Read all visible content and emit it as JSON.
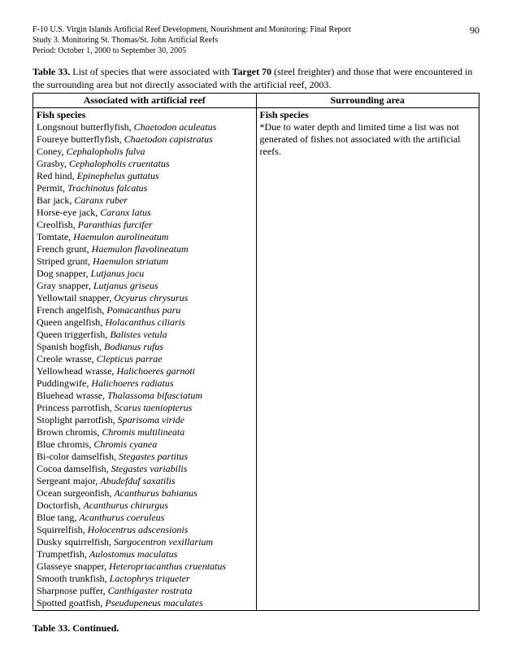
{
  "header": {
    "line1": "F-10 U.S. Virgin Islands Artificial Reef Development, Nourishment and Monitoring: Final Report",
    "line2": "Study 3.  Monitoring St. Thomas/St. John Artificial Reefs",
    "line3": "Period:  October 1, 2000 to September 30, 2005",
    "page_number": "90"
  },
  "caption": {
    "table_label": "Table 33.",
    "before_bold": "  List of species that were associated with ",
    "bold_target": "Target 70",
    "after_bold": " (steel freighter) and those that were encountered in the surrounding area but not directly associated with the artificial reef, 2003."
  },
  "table": {
    "headers": {
      "left": "Associated with artificial reef",
      "right": "Surrounding area"
    },
    "left": {
      "section_title": "Fish species",
      "species": [
        {
          "common": "Longsnout butterflyfish, ",
          "sci": "Chaetodon aculeatus"
        },
        {
          "common": "Foureye butterflyfish, ",
          "sci": "Chaetodon capistratus"
        },
        {
          "common": "Coney, ",
          "sci": "Cephalopholis fulva"
        },
        {
          "common": "Grasby, ",
          "sci": "Cephalopholis cruentatus"
        },
        {
          "common": "Red hind, ",
          "sci": "Epinephelus guttatus"
        },
        {
          "common": "Permit, ",
          "sci": "Trachinotus falcatus"
        },
        {
          "common": "Bar jack, ",
          "sci": "Caranx ruber"
        },
        {
          "common": "Horse-eye jack, ",
          "sci": "Caranx latus"
        },
        {
          "common": "Creolfish, ",
          "sci": "Paranthias furcifer"
        },
        {
          "common": "Tomtate, ",
          "sci": "Haemulon aurolineatum"
        },
        {
          "common": "French grunt, ",
          "sci": "Haemulon flavolineatum"
        },
        {
          "common": "Striped grunt, ",
          "sci": "Haemulon striatum"
        },
        {
          "common": "Dog snapper, ",
          "sci": "Lutjanus jocu"
        },
        {
          "common": "Gray snapper, ",
          "sci": "Lutjanus griseus"
        },
        {
          "common": "Yellowtail snapper, ",
          "sci": "Ocyurus chrysurus"
        },
        {
          "common": "French angelfish, ",
          "sci": "Pomacanthus paru"
        },
        {
          "common": "Queen angelfish, ",
          "sci": "Holacanthus ciliaris"
        },
        {
          "common": "Queen triggerfish, ",
          "sci": "Balistes vetula"
        },
        {
          "common": "Spanish hogfish, ",
          "sci": "Bodianus rufus"
        },
        {
          "common": "Creole wrasse, ",
          "sci": "Clepticus parrae"
        },
        {
          "common": "Yellowhead wrasse, ",
          "sci": "Halichoeres garnoti"
        },
        {
          "common": "Puddingwife, ",
          "sci": "Halichoeres radiatus"
        },
        {
          "common": "Bluehead wrasse, ",
          "sci": "Thalassoma bifasciatum"
        },
        {
          "common": "Princess parrotfish, ",
          "sci": "Scarus taeniopterus"
        },
        {
          "common": "Stoplight parrotfish, ",
          "sci": "Sparisoma viride"
        },
        {
          "common": "Brown chromis, ",
          "sci": "Chromis multilineata"
        },
        {
          "common": "Blue chromis, ",
          "sci": "Chromis cyanea"
        },
        {
          "common": "Bi-color damselfish, ",
          "sci": "Stegastes partitus"
        },
        {
          "common": "Cocoa damselfish, ",
          "sci": "Stegastes variabilis"
        },
        {
          "common": "Sergeant major, ",
          "sci": "Abudefduf saxatilis"
        },
        {
          "common": "Ocean surgeonfish, ",
          "sci": "Acanthurus bahianus"
        },
        {
          "common": "Doctorfish, ",
          "sci": "Acanthurus chirurgus"
        },
        {
          "common": "Blue tang, ",
          "sci": "Acanthurus coeruleus"
        },
        {
          "common": "Squirrelfish, ",
          "sci": "Holocentrus adscensionis"
        },
        {
          "common": "Dusky squirrelfish, ",
          "sci": "Sargocentron vexillarium"
        },
        {
          "common": "Trumpetfish, ",
          "sci": "Aulostomus maculatus"
        },
        {
          "common": "Glasseye snapper, ",
          "sci": "Heteropriacanthus cruentatus"
        },
        {
          "common": "Smooth trunkfish, ",
          "sci": "Lactophrys triqueter"
        },
        {
          "common": "Sharpnose puffer, ",
          "sci": "Canthigaster rostrata"
        },
        {
          "common": "Spotted goatfish, ",
          "sci": "Pseudupeneus maculates"
        }
      ]
    },
    "right": {
      "section_title": "Fish species",
      "note": "*Due to water depth and limited time a list was not generated of fishes not associated with the artificial reefs."
    }
  },
  "continued": "Table 33.  Continued."
}
